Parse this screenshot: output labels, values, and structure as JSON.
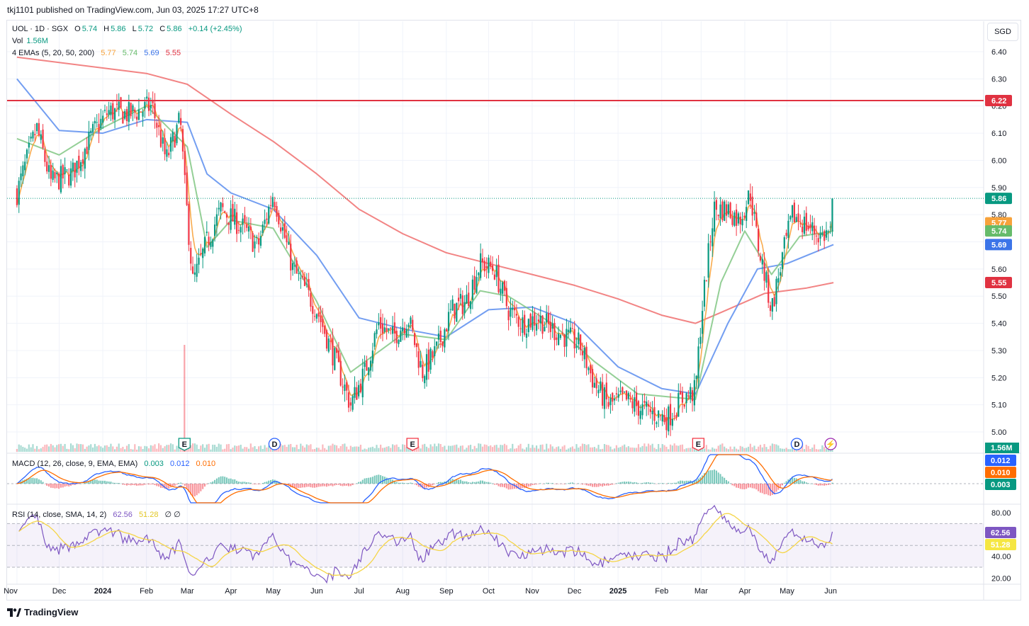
{
  "topbar": {
    "published": "tkj1101 published on TradingView.com, Jun 03, 2025 17:27 UTC+8"
  },
  "legend": {
    "symbol": "UOL · 1D · SGX",
    "o_label": "O",
    "o": "5.74",
    "h_label": "H",
    "h": "5.86",
    "l_label": "L",
    "l": "5.72",
    "c_label": "C",
    "c": "5.86",
    "change": "+0.14 (+2.45%)",
    "vol_label": "Vol",
    "vol": "1.56M",
    "ema_label": "4 EMAs (5, 20, 50, 200)",
    "ema5": "5.77",
    "ema20": "5.74",
    "ema50": "5.69",
    "ema200": "5.55",
    "macd_label": "MACD (12, 26, close, 9, EMA, EMA)",
    "macd_hist": "0.003",
    "macd_line": "0.012",
    "macd_signal": "0.010",
    "rsi_label": "RSI (14, close, SMA, 14, 2)",
    "rsi": "62.56",
    "rsi_ma": "51.28",
    "rsi_extra": "∅ ∅"
  },
  "currency": "SGD",
  "colors": {
    "up": "#089981",
    "down": "#f23645",
    "ema5": "#f7a23b",
    "ema20": "#81c784",
    "ema50": "#5b8def",
    "ema200": "#f06f6f",
    "hline": "#e03241",
    "macd": "#2962ff",
    "signal": "#ff6d00",
    "rsi": "#7e57c2",
    "rsi_ma": "#f5d547"
  },
  "chart_data": [
    {
      "type": "candlestick",
      "panel": "price",
      "symbol": "UOL",
      "interval": "1D",
      "exchange": "SGX",
      "x_ticks": [
        "Nov",
        "Dec",
        "2024",
        "Feb",
        "Mar",
        "Apr",
        "May",
        "Jun",
        "Jul",
        "Aug",
        "Sep",
        "Oct",
        "Nov",
        "Dec",
        "2025",
        "Feb",
        "Mar",
        "Apr",
        "May",
        "Jun"
      ],
      "y_ticks": [
        "6.40",
        "6.30",
        "6.20",
        "6.10",
        "6.00",
        "5.90",
        "5.80",
        "5.70",
        "5.60",
        "5.50",
        "5.40",
        "5.30",
        "5.20",
        "5.10",
        "5.00"
      ],
      "ylim": [
        4.97,
        6.47
      ],
      "close_path": [
        [
          "2023-11-01",
          5.88
        ],
        [
          "2023-11-15",
          6.12
        ],
        [
          "2023-11-25",
          5.92
        ],
        [
          "2023-12-10",
          5.95
        ],
        [
          "2023-12-25",
          6.1
        ],
        [
          "2024-01-05",
          6.18
        ],
        [
          "2024-01-20",
          6.17
        ],
        [
          "2024-02-05",
          6.2
        ],
        [
          "2024-02-15",
          6.0
        ],
        [
          "2024-02-25",
          6.15
        ],
        [
          "2024-02-28",
          5.92
        ],
        [
          "2024-03-05",
          5.55
        ],
        [
          "2024-03-15",
          5.7
        ],
        [
          "2024-03-25",
          5.82
        ],
        [
          "2024-04-10",
          5.75
        ],
        [
          "2024-04-20",
          5.68
        ],
        [
          "2024-05-01",
          5.88
        ],
        [
          "2024-05-15",
          5.6
        ],
        [
          "2024-06-01",
          5.45
        ],
        [
          "2024-06-15",
          5.25
        ],
        [
          "2024-06-25",
          5.1
        ],
        [
          "2024-07-05",
          5.22
        ],
        [
          "2024-07-15",
          5.4
        ],
        [
          "2024-07-25",
          5.35
        ],
        [
          "2024-08-05",
          5.42
        ],
        [
          "2024-08-15",
          5.22
        ],
        [
          "2024-08-25",
          5.3
        ],
        [
          "2024-09-05",
          5.45
        ],
        [
          "2024-09-15",
          5.48
        ],
        [
          "2024-09-25",
          5.62
        ],
        [
          "2024-10-05",
          5.6
        ],
        [
          "2024-10-15",
          5.45
        ],
        [
          "2024-10-25",
          5.4
        ],
        [
          "2024-11-05",
          5.42
        ],
        [
          "2024-11-15",
          5.38
        ],
        [
          "2024-11-25",
          5.35
        ],
        [
          "2024-12-05",
          5.32
        ],
        [
          "2024-12-15",
          5.18
        ],
        [
          "2024-12-25",
          5.1
        ],
        [
          "2025-01-05",
          5.12
        ],
        [
          "2025-01-20",
          5.08
        ],
        [
          "2025-02-05",
          5.05
        ],
        [
          "2025-02-15",
          5.12
        ],
        [
          "2025-02-25",
          5.15
        ],
        [
          "2025-03-01",
          5.42
        ],
        [
          "2025-03-05",
          5.6
        ],
        [
          "2025-03-10",
          5.82
        ],
        [
          "2025-03-20",
          5.82
        ],
        [
          "2025-03-28",
          5.78
        ],
        [
          "2025-04-05",
          5.88
        ],
        [
          "2025-04-10",
          5.7
        ],
        [
          "2025-04-15",
          5.58
        ],
        [
          "2025-04-20",
          5.45
        ],
        [
          "2025-04-28",
          5.65
        ],
        [
          "2025-05-05",
          5.8
        ],
        [
          "2025-05-15",
          5.76
        ],
        [
          "2025-05-25",
          5.72
        ],
        [
          "2025-06-02",
          5.74
        ],
        [
          "2025-06-03",
          5.86
        ]
      ],
      "ema200_path": [
        [
          "2023-11-01",
          6.38
        ],
        [
          "2024-01-01",
          6.34
        ],
        [
          "2024-02-01",
          6.32
        ],
        [
          "2024-03-01",
          6.28
        ],
        [
          "2024-04-01",
          6.17
        ],
        [
          "2024-05-01",
          6.07
        ],
        [
          "2024-06-01",
          5.95
        ],
        [
          "2024-07-01",
          5.82
        ],
        [
          "2024-08-01",
          5.73
        ],
        [
          "2024-09-01",
          5.66
        ],
        [
          "2024-10-01",
          5.62
        ],
        [
          "2024-11-01",
          5.58
        ],
        [
          "2024-12-01",
          5.54
        ],
        [
          "2025-01-01",
          5.49
        ],
        [
          "2025-02-01",
          5.43
        ],
        [
          "2025-02-25",
          5.4
        ],
        [
          "2025-03-15",
          5.44
        ],
        [
          "2025-04-15",
          5.51
        ],
        [
          "2025-05-15",
          5.53
        ],
        [
          "2025-06-03",
          5.55
        ]
      ],
      "ema50_path": [
        [
          "2023-11-01",
          6.3
        ],
        [
          "2023-12-01",
          6.11
        ],
        [
          "2024-01-01",
          6.1
        ],
        [
          "2024-02-01",
          6.15
        ],
        [
          "2024-03-01",
          6.14
        ],
        [
          "2024-03-15",
          5.95
        ],
        [
          "2024-04-01",
          5.88
        ],
        [
          "2024-05-01",
          5.82
        ],
        [
          "2024-06-01",
          5.65
        ],
        [
          "2024-07-01",
          5.42
        ],
        [
          "2024-08-01",
          5.38
        ],
        [
          "2024-09-01",
          5.35
        ],
        [
          "2024-10-01",
          5.45
        ],
        [
          "2024-11-01",
          5.46
        ],
        [
          "2024-12-01",
          5.4
        ],
        [
          "2025-01-01",
          5.24
        ],
        [
          "2025-02-01",
          5.16
        ],
        [
          "2025-02-25",
          5.14
        ],
        [
          "2025-03-20",
          5.4
        ],
        [
          "2025-04-10",
          5.6
        ],
        [
          "2025-05-01",
          5.62
        ],
        [
          "2025-06-03",
          5.69
        ]
      ],
      "ema20_path": [
        [
          "2023-11-01",
          6.08
        ],
        [
          "2023-12-01",
          6.02
        ],
        [
          "2024-01-01",
          6.12
        ],
        [
          "2024-02-01",
          6.2
        ],
        [
          "2024-03-01",
          6.05
        ],
        [
          "2024-03-15",
          5.68
        ],
        [
          "2024-04-01",
          5.78
        ],
        [
          "2024-05-01",
          5.75
        ],
        [
          "2024-06-01",
          5.48
        ],
        [
          "2024-06-25",
          5.22
        ],
        [
          "2024-08-01",
          5.36
        ],
        [
          "2024-09-01",
          5.34
        ],
        [
          "2024-09-25",
          5.52
        ],
        [
          "2024-10-15",
          5.5
        ],
        [
          "2024-11-15",
          5.4
        ],
        [
          "2024-12-15",
          5.26
        ],
        [
          "2025-01-15",
          5.14
        ],
        [
          "2025-02-25",
          5.12
        ],
        [
          "2025-03-15",
          5.55
        ],
        [
          "2025-04-01",
          5.74
        ],
        [
          "2025-04-20",
          5.58
        ],
        [
          "2025-05-10",
          5.72
        ],
        [
          "2025-06-03",
          5.74
        ]
      ],
      "hline": {
        "value": "6.22"
      },
      "price_badges": [
        {
          "value": "6.22",
          "color": "#e03241",
          "y": 6.22
        },
        {
          "value": "5.86",
          "color": "#089981",
          "y": 5.86
        },
        {
          "value": "5.77",
          "color": "#f7a23b",
          "y": 5.77
        },
        {
          "value": "5.74",
          "color": "#66bb6a",
          "y": 5.74
        },
        {
          "value": "5.69",
          "color": "#3b74e8",
          "y": 5.69
        },
        {
          "value": "5.55",
          "color": "#e03241",
          "y": 5.55
        }
      ],
      "event_markers": [
        {
          "letter": "E",
          "date": "2024-02-28",
          "color": "#089981"
        },
        {
          "letter": "D",
          "date": "2024-05-02",
          "color": "#2962ff"
        },
        {
          "letter": "E",
          "date": "2024-08-08",
          "color": "#f23645"
        },
        {
          "letter": "E",
          "date": "2025-02-27",
          "color": "#f23645"
        },
        {
          "letter": "D",
          "date": "2025-05-08",
          "color": "#2962ff"
        },
        {
          "letter": "⚡",
          "date": "2025-06-01",
          "color": "#9c27b0"
        }
      ]
    },
    {
      "type": "bar",
      "panel": "volume",
      "label": "Vol",
      "last_value": "1.56M",
      "spike": {
        "date": "2024-02-28",
        "note": "largest volume bar"
      }
    },
    {
      "type": "line",
      "panel": "macd",
      "label": "MACD (12, 26, close, 9, EMA, EMA)",
      "series": [
        {
          "name": "MACD",
          "last": "0.012"
        },
        {
          "name": "Signal",
          "last": "0.010"
        },
        {
          "name": "Histogram",
          "last": "0.003"
        }
      ],
      "badges": [
        {
          "value": "0.012",
          "color": "#2962ff"
        },
        {
          "value": "0.010",
          "color": "#ff6d00"
        },
        {
          "value": "0.003",
          "color": "#089981"
        }
      ]
    },
    {
      "type": "line",
      "panel": "rsi",
      "label": "RSI (14, close, SMA, 14, 2)",
      "y_ticks": [
        "80.00",
        "40.00",
        "20.00"
      ],
      "ylim": [
        20,
        80
      ],
      "band": [
        30,
        70
      ],
      "series": [
        {
          "name": "RSI",
          "last": "62.56"
        },
        {
          "name": "RSI-based MA",
          "last": "51.28"
        }
      ],
      "badges": [
        {
          "value": "62.56",
          "color": "#7e57c2",
          "text": "#ffffff"
        },
        {
          "value": "51.28",
          "color": "#f5e642",
          "text": "#131722"
        }
      ]
    }
  ],
  "footer": {
    "brand": "TradingView"
  }
}
